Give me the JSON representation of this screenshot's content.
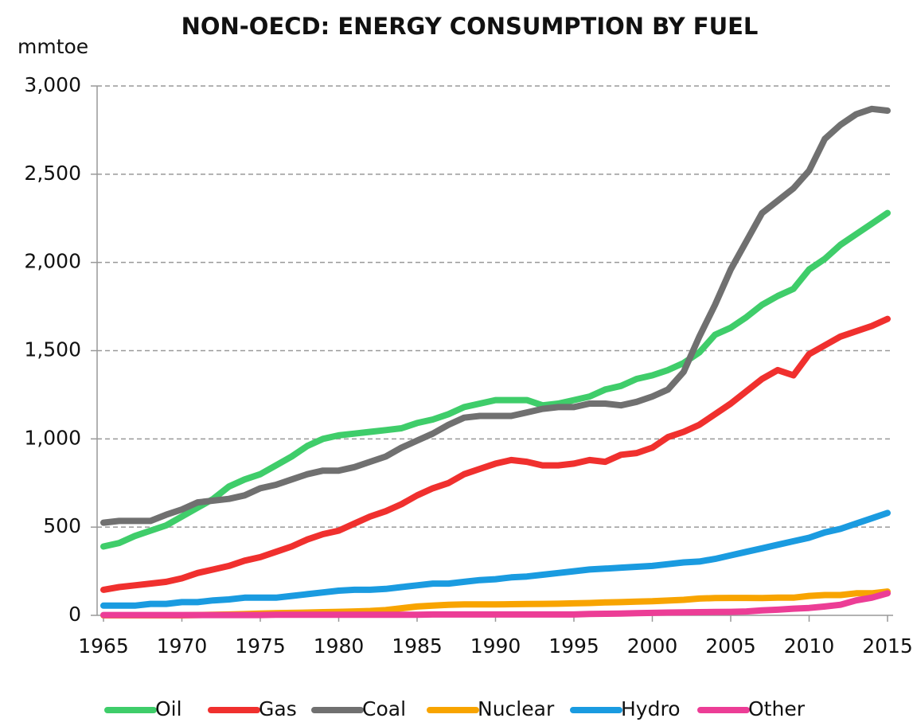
{
  "chart_data": {
    "type": "line",
    "title": "NON-OECD: ENERGY CONSUMPTION BY FUEL",
    "y_label": "mmtoe",
    "x": [
      1965,
      1966,
      1967,
      1968,
      1969,
      1970,
      1971,
      1972,
      1973,
      1974,
      1975,
      1976,
      1977,
      1978,
      1979,
      1980,
      1981,
      1982,
      1983,
      1984,
      1985,
      1986,
      1987,
      1988,
      1989,
      1990,
      1991,
      1992,
      1993,
      1994,
      1995,
      1996,
      1997,
      1998,
      1999,
      2000,
      2001,
      2002,
      2003,
      2004,
      2005,
      2006,
      2007,
      2008,
      2009,
      2010,
      2011,
      2012,
      2013,
      2014,
      2015
    ],
    "series": [
      {
        "name": "Oil",
        "color": "#3fcd6a",
        "values": [
          390,
          410,
          450,
          480,
          510,
          560,
          610,
          660,
          730,
          770,
          800,
          850,
          900,
          960,
          1000,
          1020,
          1030,
          1040,
          1050,
          1060,
          1090,
          1110,
          1140,
          1180,
          1200,
          1220,
          1220,
          1220,
          1190,
          1200,
          1220,
          1240,
          1280,
          1300,
          1340,
          1360,
          1390,
          1430,
          1490,
          1590,
          1630,
          1690,
          1760,
          1810,
          1850,
          1960,
          2020,
          2100,
          2160,
          2220,
          2280
        ]
      },
      {
        "name": "Gas",
        "color": "#f0302e",
        "values": [
          145,
          160,
          170,
          180,
          190,
          210,
          240,
          260,
          280,
          310,
          330,
          360,
          390,
          430,
          460,
          480,
          520,
          560,
          590,
          630,
          680,
          720,
          750,
          800,
          830,
          860,
          880,
          870,
          850,
          850,
          860,
          880,
          870,
          910,
          920,
          950,
          1010,
          1040,
          1080,
          1140,
          1200,
          1270,
          1340,
          1390,
          1360,
          1480,
          1530,
          1580,
          1610,
          1640,
          1680
        ]
      },
      {
        "name": "Coal",
        "color": "#707070",
        "values": [
          525,
          535,
          535,
          535,
          570,
          600,
          640,
          650,
          660,
          680,
          720,
          740,
          770,
          800,
          820,
          820,
          840,
          870,
          900,
          950,
          990,
          1030,
          1080,
          1120,
          1130,
          1130,
          1130,
          1150,
          1170,
          1180,
          1180,
          1200,
          1200,
          1190,
          1210,
          1240,
          1280,
          1380,
          1580,
          1760,
          1960,
          2120,
          2280,
          2350,
          2420,
          2520,
          2700,
          2780,
          2840,
          2870,
          2860
        ]
      },
      {
        "name": "Nuclear",
        "color": "#f8a400",
        "values": [
          0,
          0,
          0,
          0,
          0,
          0,
          2,
          3,
          5,
          7,
          10,
          12,
          14,
          16,
          18,
          20,
          22,
          25,
          30,
          40,
          50,
          55,
          60,
          62,
          62,
          62,
          63,
          64,
          65,
          66,
          68,
          70,
          73,
          75,
          78,
          80,
          84,
          88,
          95,
          98,
          99,
          99,
          98,
          100,
          100,
          110,
          115,
          115,
          125,
          125,
          135
        ]
      },
      {
        "name": "Hydro",
        "color": "#1a9be0",
        "values": [
          55,
          55,
          55,
          65,
          65,
          75,
          75,
          85,
          90,
          100,
          100,
          100,
          110,
          120,
          130,
          140,
          145,
          145,
          150,
          160,
          170,
          180,
          180,
          190,
          200,
          205,
          215,
          220,
          230,
          240,
          250,
          260,
          265,
          270,
          275,
          280,
          290,
          300,
          305,
          320,
          340,
          360,
          380,
          400,
          420,
          440,
          470,
          490,
          520,
          550,
          580
        ]
      },
      {
        "name": "Other",
        "color": "#ec3d96",
        "values": [
          2,
          2,
          2,
          2,
          2,
          2,
          2,
          2,
          2,
          2,
          2,
          3,
          3,
          3,
          3,
          3,
          3,
          3,
          3,
          3,
          3,
          5,
          5,
          5,
          5,
          5,
          5,
          5,
          5,
          5,
          5,
          8,
          9,
          10,
          12,
          14,
          16,
          17,
          18,
          19,
          20,
          22,
          28,
          32,
          38,
          42,
          50,
          60,
          85,
          100,
          125
        ]
      }
    ],
    "xlim": [
      1965,
      2015
    ],
    "xticks": [
      1965,
      1970,
      1975,
      1980,
      1985,
      1990,
      1995,
      2000,
      2005,
      2010,
      2015
    ],
    "ylim": [
      0,
      3000
    ],
    "yticks": [
      0,
      500,
      {
        "value": 1000,
        "label": "1,000"
      },
      {
        "value": 1500,
        "label": "1,500"
      },
      {
        "value": 2000,
        "label": "2,000"
      },
      {
        "value": 2500,
        "label": "2,500"
      },
      {
        "value": 3000,
        "label": "3,000"
      }
    ],
    "grid": true,
    "legend": "bottom"
  }
}
